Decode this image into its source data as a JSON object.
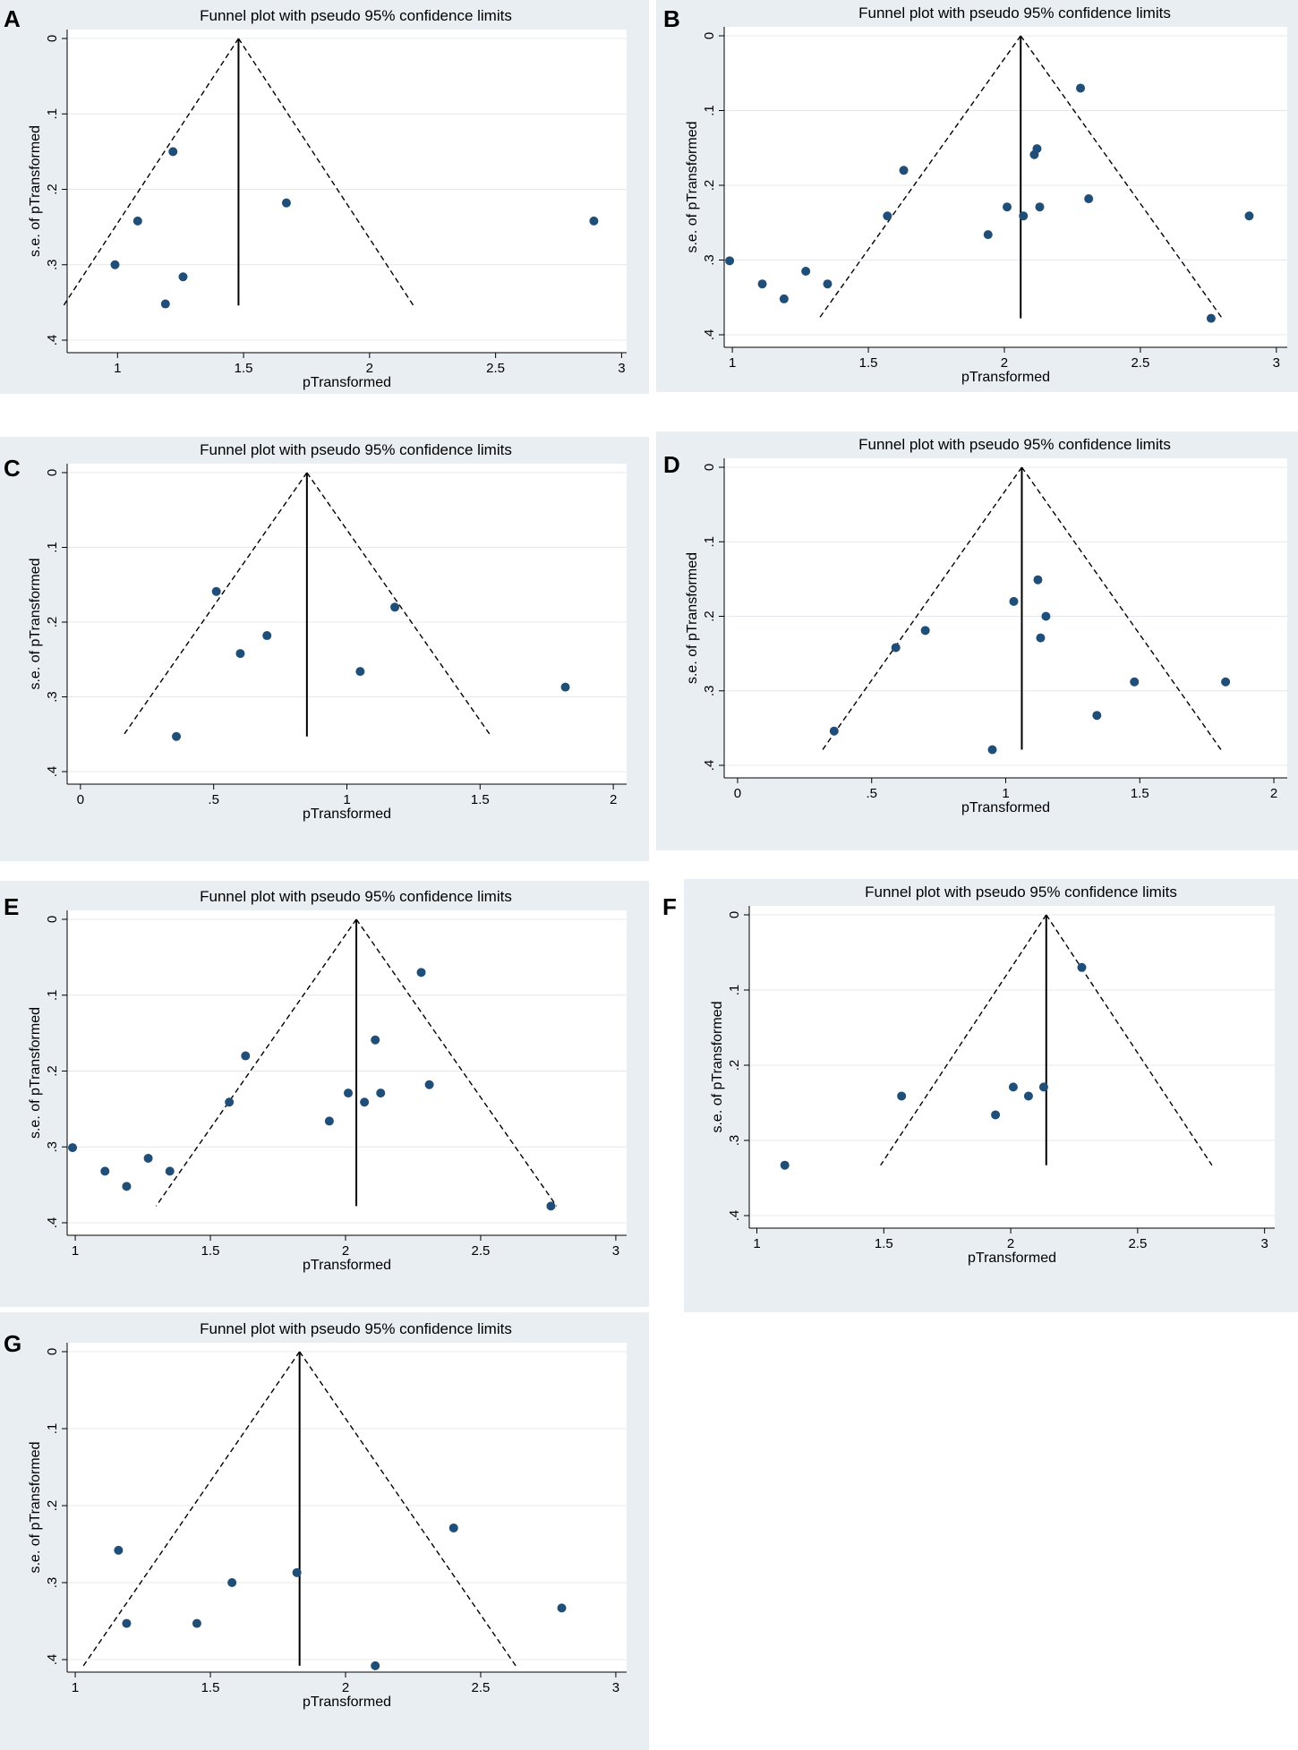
{
  "colors": {
    "panel_bg": "#e9eef2",
    "plot_bg": "#ffffff",
    "grid": "#e4e8ec",
    "marker": "#1f4e79",
    "line": "#000000"
  },
  "chart_data": [
    {
      "panel_label": "A",
      "type": "scatter",
      "title": "Funnel plot with pseudo 95% confidence limits",
      "xlabel": "pTransformed",
      "ylabel": "s.e. of pTransformed",
      "xlim": [
        0.8,
        3.02
      ],
      "ylim": [
        0,
        0.4
      ],
      "y_inverted": true,
      "xticks": [
        1,
        1.5,
        2,
        2.5,
        3
      ],
      "xtick_labels": [
        "1",
        "1.5",
        "2",
        "2.5",
        "3"
      ],
      "yticks": [
        0,
        0.1,
        0.2,
        0.3,
        0.4
      ],
      "ytick_labels": [
        "0",
        ".1",
        ".2",
        ".3",
        ".4"
      ],
      "pooled_estimate": 1.48,
      "funnel_max_se": 0.354,
      "points": [
        {
          "x": 1.22,
          "y": 0.15
        },
        {
          "x": 1.08,
          "y": 0.242
        },
        {
          "x": 0.99,
          "y": 0.3
        },
        {
          "x": 1.26,
          "y": 0.316
        },
        {
          "x": 1.19,
          "y": 0.352
        },
        {
          "x": 1.67,
          "y": 0.218
        },
        {
          "x": 2.89,
          "y": 0.242
        }
      ]
    },
    {
      "panel_label": "B",
      "type": "scatter",
      "title": "Funnel plot with pseudo 95% confidence limits",
      "xlabel": "pTransformed",
      "ylabel": "s.e. of pTransformed",
      "xlim": [
        0.97,
        3.04
      ],
      "ylim": [
        0,
        0.4
      ],
      "y_inverted": true,
      "xticks": [
        1,
        1.5,
        2,
        2.5,
        3
      ],
      "xtick_labels": [
        "1",
        "1.5",
        "2",
        "2.5",
        "3"
      ],
      "yticks": [
        0,
        0.1,
        0.2,
        0.3,
        0.4
      ],
      "ytick_labels": [
        "0",
        ".1",
        ".2",
        ".3",
        ".4"
      ],
      "pooled_estimate": 2.06,
      "funnel_max_se": 0.378,
      "points": [
        {
          "x": 0.99,
          "y": 0.301
        },
        {
          "x": 1.11,
          "y": 0.332
        },
        {
          "x": 1.19,
          "y": 0.352
        },
        {
          "x": 1.27,
          "y": 0.315
        },
        {
          "x": 1.35,
          "y": 0.332
        },
        {
          "x": 1.57,
          "y": 0.241
        },
        {
          "x": 1.63,
          "y": 0.18
        },
        {
          "x": 1.94,
          "y": 0.266
        },
        {
          "x": 2.01,
          "y": 0.229
        },
        {
          "x": 2.07,
          "y": 0.241
        },
        {
          "x": 2.11,
          "y": 0.159
        },
        {
          "x": 2.12,
          "y": 0.151
        },
        {
          "x": 2.13,
          "y": 0.229
        },
        {
          "x": 2.28,
          "y": 0.07
        },
        {
          "x": 2.31,
          "y": 0.218
        },
        {
          "x": 2.76,
          "y": 0.378
        },
        {
          "x": 2.9,
          "y": 0.241
        }
      ]
    },
    {
      "panel_label": "C",
      "type": "scatter",
      "title": "Funnel plot with pseudo 95% confidence limits",
      "xlabel": "pTransformed",
      "ylabel": "s.e. of pTransformed",
      "xlim": [
        -0.05,
        2.05
      ],
      "ylim": [
        0,
        0.4
      ],
      "y_inverted": true,
      "xticks": [
        0,
        0.5,
        1,
        1.5,
        2
      ],
      "xtick_labels": [
        "0",
        ".5",
        "1",
        "1.5",
        "2"
      ],
      "yticks": [
        0,
        0.1,
        0.2,
        0.3,
        0.4
      ],
      "ytick_labels": [
        "0",
        ".1",
        ".2",
        ".3",
        ".4"
      ],
      "pooled_estimate": 0.85,
      "funnel_max_se": 0.353,
      "points": [
        {
          "x": 0.51,
          "y": 0.159
        },
        {
          "x": 0.6,
          "y": 0.242
        },
        {
          "x": 0.7,
          "y": 0.218
        },
        {
          "x": 0.36,
          "y": 0.353
        },
        {
          "x": 1.05,
          "y": 0.266
        },
        {
          "x": 1.18,
          "y": 0.18
        },
        {
          "x": 1.82,
          "y": 0.287
        }
      ]
    },
    {
      "panel_label": "D",
      "type": "scatter",
      "title": "Funnel plot with pseudo 95% confidence limits",
      "xlabel": "pTransformed",
      "ylabel": "s.e. of pTransformed",
      "xlim": [
        -0.05,
        2.05
      ],
      "ylim": [
        0,
        0.4
      ],
      "y_inverted": true,
      "xticks": [
        0,
        0.5,
        1,
        1.5,
        2
      ],
      "xtick_labels": [
        "0",
        ".5",
        "1",
        "1.5",
        "2"
      ],
      "yticks": [
        0,
        0.1,
        0.2,
        0.3,
        0.4
      ],
      "ytick_labels": [
        "0",
        ".1",
        ".2",
        ".3",
        ".4"
      ],
      "pooled_estimate": 1.06,
      "funnel_max_se": 0.379,
      "points": [
        {
          "x": 0.36,
          "y": 0.354
        },
        {
          "x": 0.59,
          "y": 0.242
        },
        {
          "x": 0.7,
          "y": 0.219
        },
        {
          "x": 0.95,
          "y": 0.379
        },
        {
          "x": 1.03,
          "y": 0.18
        },
        {
          "x": 1.12,
          "y": 0.151
        },
        {
          "x": 1.13,
          "y": 0.229
        },
        {
          "x": 1.15,
          "y": 0.2
        },
        {
          "x": 1.34,
          "y": 0.333
        },
        {
          "x": 1.48,
          "y": 0.288
        },
        {
          "x": 1.82,
          "y": 0.288
        }
      ]
    },
    {
      "panel_label": "E",
      "type": "scatter",
      "title": "Funnel plot with pseudo 95% confidence limits",
      "xlabel": "pTransformed",
      "ylabel": "s.e. of pTransformed",
      "xlim": [
        0.97,
        3.04
      ],
      "ylim": [
        0,
        0.4
      ],
      "y_inverted": true,
      "xticks": [
        1,
        1.5,
        2,
        2.5,
        3
      ],
      "xtick_labels": [
        "1",
        "1.5",
        "2",
        "2.5",
        "3"
      ],
      "yticks": [
        0,
        0.1,
        0.2,
        0.3,
        0.4
      ],
      "ytick_labels": [
        "0",
        ".1",
        ".2",
        ".3",
        ".4"
      ],
      "pooled_estimate": 2.04,
      "funnel_max_se": 0.378,
      "points": [
        {
          "x": 0.99,
          "y": 0.301
        },
        {
          "x": 1.11,
          "y": 0.332
        },
        {
          "x": 1.19,
          "y": 0.352
        },
        {
          "x": 1.27,
          "y": 0.315
        },
        {
          "x": 1.35,
          "y": 0.332
        },
        {
          "x": 1.57,
          "y": 0.241
        },
        {
          "x": 1.63,
          "y": 0.18
        },
        {
          "x": 1.94,
          "y": 0.266
        },
        {
          "x": 2.01,
          "y": 0.229
        },
        {
          "x": 2.07,
          "y": 0.241
        },
        {
          "x": 2.11,
          "y": 0.159
        },
        {
          "x": 2.13,
          "y": 0.229
        },
        {
          "x": 2.28,
          "y": 0.07
        },
        {
          "x": 2.31,
          "y": 0.218
        },
        {
          "x": 2.76,
          "y": 0.378
        }
      ]
    },
    {
      "panel_label": "F",
      "type": "scatter",
      "title": "Funnel plot with pseudo 95% confidence limits",
      "xlabel": "pTransformed",
      "ylabel": "s.e. of pTransformed",
      "xlim": [
        0.97,
        3.04
      ],
      "ylim": [
        0,
        0.4
      ],
      "y_inverted": true,
      "xticks": [
        1,
        1.5,
        2,
        2.5,
        3
      ],
      "xtick_labels": [
        "1",
        "1.5",
        "2",
        "2.5",
        "3"
      ],
      "yticks": [
        0,
        0.1,
        0.2,
        0.3,
        0.4
      ],
      "ytick_labels": [
        "0",
        ".1",
        ".2",
        ".3",
        ".4"
      ],
      "pooled_estimate": 2.14,
      "funnel_max_se": 0.333,
      "points": [
        {
          "x": 1.11,
          "y": 0.333
        },
        {
          "x": 1.57,
          "y": 0.241
        },
        {
          "x": 1.94,
          "y": 0.266
        },
        {
          "x": 2.01,
          "y": 0.229
        },
        {
          "x": 2.07,
          "y": 0.241
        },
        {
          "x": 2.13,
          "y": 0.229
        },
        {
          "x": 2.28,
          "y": 0.07
        }
      ]
    },
    {
      "panel_label": "G",
      "type": "scatter",
      "title": "Funnel plot with pseudo 95% confidence limits",
      "xlabel": "pTransformed",
      "ylabel": "s.e. of pTransformed",
      "xlim": [
        0.97,
        3.04
      ],
      "ylim": [
        0,
        0.4
      ],
      "y_inverted": true,
      "xticks": [
        1,
        1.5,
        2,
        2.5,
        3
      ],
      "xtick_labels": [
        "1",
        "1.5",
        "2",
        "2.5",
        "3"
      ],
      "yticks": [
        0,
        0.1,
        0.2,
        0.3,
        0.4
      ],
      "ytick_labels": [
        "0",
        ".1",
        ".2",
        ".3",
        ".4"
      ],
      "pooled_estimate": 1.83,
      "funnel_max_se": 0.408,
      "points": [
        {
          "x": 1.16,
          "y": 0.258
        },
        {
          "x": 1.19,
          "y": 0.353
        },
        {
          "x": 1.45,
          "y": 0.353
        },
        {
          "x": 1.58,
          "y": 0.3
        },
        {
          "x": 1.82,
          "y": 0.287
        },
        {
          "x": 2.11,
          "y": 0.408
        },
        {
          "x": 2.4,
          "y": 0.229
        },
        {
          "x": 2.8,
          "y": 0.333
        }
      ]
    }
  ]
}
